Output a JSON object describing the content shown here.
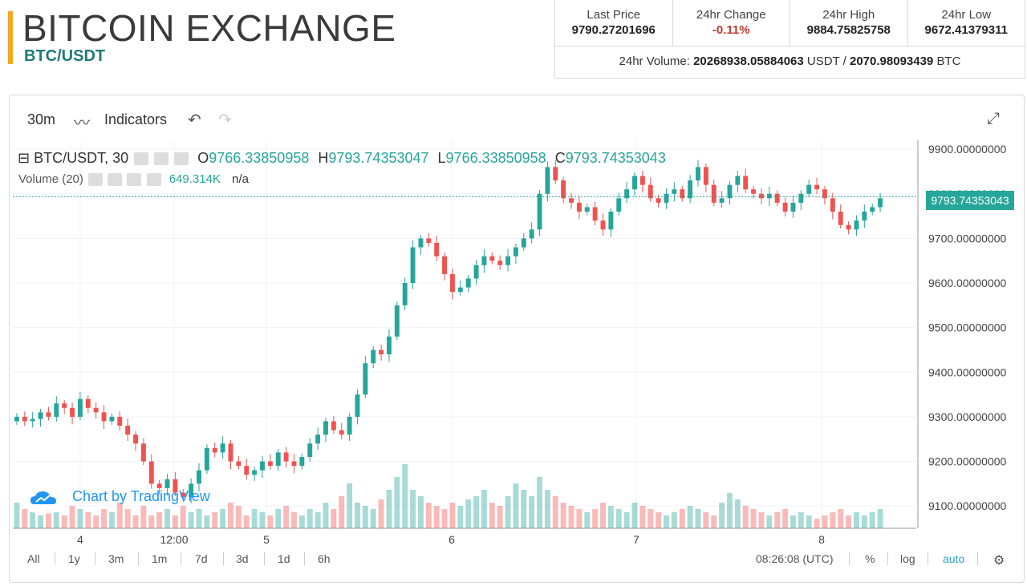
{
  "header": {
    "title": "BITCOIN EXCHANGE",
    "pair": "BTC/USDT"
  },
  "stats": {
    "items": [
      {
        "label": "Last Price",
        "value": "9790.27201696"
      },
      {
        "label": "24hr Change",
        "value": "-0.11%"
      },
      {
        "label": "24hr High",
        "value": "9884.75825758"
      },
      {
        "label": "24hr Low",
        "value": "9672.41379311"
      }
    ],
    "volume_label": "24hr Volume:",
    "volume_usdt": "20268938.05884063",
    "usdt": "USDT",
    "sep": "/",
    "volume_btc": "2070.98093439",
    "btc": "BTC"
  },
  "toolbar": {
    "interval": "30m",
    "indicators": "Indicators"
  },
  "legend": {
    "symbol": "BTC/USDT, 30",
    "o_label": "O",
    "o": "9766.33850958",
    "h_label": "H",
    "h": "9793.74353047",
    "l_label": "L",
    "l": "9766.33850958",
    "c_label": "C",
    "c": "9793.74353043",
    "volume_label": "Volume (20)",
    "volume_value": "649.314K",
    "volume_na": "n/a"
  },
  "last_price_badge": "9793.74353043",
  "tradingview": "Chart by TradingView",
  "bottom": {
    "ranges": [
      "All",
      "1y",
      "3m",
      "1m",
      "7d",
      "3d",
      "1d",
      "6h"
    ],
    "time": "08:26:08 (UTC)",
    "percent": "%",
    "log": "log",
    "auto": "auto"
  },
  "colors": {
    "up": "#26a69a",
    "down": "#ef5350",
    "accent": "#f5a623",
    "brand": "#1f7a7a"
  },
  "chart_data": {
    "type": "candlestick",
    "price_axis": [
      "9900.00000000",
      "9800.00000000",
      "9700.00000000",
      "9600.00000000",
      "9500.00000000",
      "9400.00000000",
      "9300.00000000",
      "9200.00000000",
      "9100.00000000"
    ],
    "time_axis": [
      "4",
      "12:00",
      "5",
      "6",
      "7",
      "8"
    ],
    "ylim": [
      9050,
      9920
    ],
    "close_series": [
      9300,
      9290,
      9295,
      9310,
      9300,
      9330,
      9320,
      9300,
      9340,
      9320,
      9310,
      9290,
      9300,
      9280,
      9260,
      9240,
      9200,
      9150,
      9140,
      9160,
      9130,
      9120,
      9150,
      9180,
      9230,
      9220,
      9240,
      9200,
      9190,
      9170,
      9180,
      9200,
      9190,
      9220,
      9200,
      9190,
      9210,
      9240,
      9260,
      9290,
      9270,
      9260,
      9300,
      9350,
      9420,
      9450,
      9440,
      9480,
      9550,
      9600,
      9680,
      9700,
      9690,
      9660,
      9620,
      9580,
      9590,
      9610,
      9640,
      9660,
      9650,
      9640,
      9660,
      9680,
      9700,
      9720,
      9800,
      9860,
      9830,
      9790,
      9780,
      9760,
      9770,
      9740,
      9720,
      9760,
      9790,
      9810,
      9840,
      9820,
      9790,
      9780,
      9800,
      9810,
      9790,
      9830,
      9860,
      9820,
      9780,
      9790,
      9820,
      9840,
      9810,
      9800,
      9790,
      9800,
      9780,
      9760,
      9780,
      9800,
      9820,
      9810,
      9790,
      9760,
      9730,
      9720,
      9740,
      9760,
      9770,
      9790
    ],
    "volume_series": [
      40,
      30,
      25,
      20,
      30,
      25,
      20,
      35,
      30,
      25,
      20,
      30,
      25,
      40,
      30,
      20,
      35,
      20,
      25,
      30,
      20,
      35,
      25,
      30,
      20,
      25,
      30,
      40,
      35,
      20,
      30,
      25,
      20,
      30,
      35,
      25,
      20,
      30,
      25,
      40,
      30,
      50,
      70,
      40,
      35,
      30,
      45,
      60,
      80,
      100,
      60,
      50,
      40,
      35,
      30,
      40,
      35,
      45,
      50,
      60,
      40,
      35,
      50,
      70,
      60,
      50,
      80,
      60,
      50,
      40,
      35,
      30,
      25,
      30,
      40,
      35,
      30,
      25,
      40,
      35,
      30,
      25,
      20,
      25,
      30,
      35,
      30,
      25,
      20,
      40,
      55,
      45,
      35,
      30,
      25,
      20,
      25,
      30,
      20,
      25,
      20,
      15,
      20,
      25,
      30,
      20,
      25,
      20,
      25,
      30
    ]
  }
}
